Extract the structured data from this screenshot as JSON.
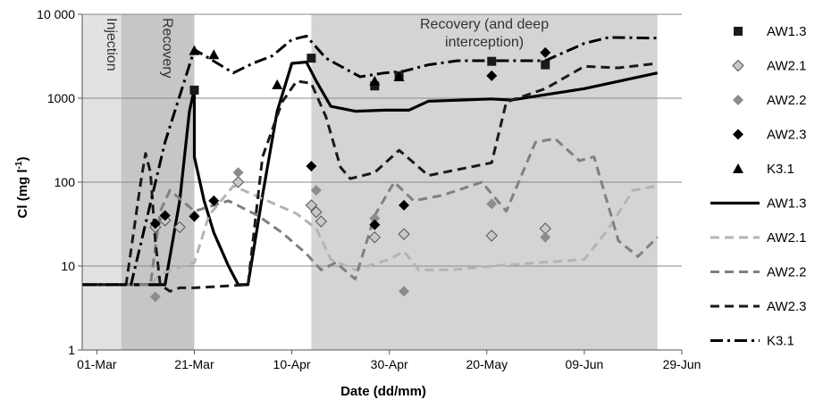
{
  "chart_data": {
    "type": "line",
    "xlabel": "Date (dd/mm)",
    "ylabel": "Cl (mg l",
    "ylabel_sup": "-1",
    "ylabel_close": ")",
    "x_start": "2013-02-26",
    "xlim": [
      "2013-02-26",
      "2013-06-29"
    ],
    "ylim": [
      1,
      10000
    ],
    "yscale": "log",
    "grid": "horizontal",
    "legend_position": "right",
    "x_ticks": [
      {
        "date": "2013-03-01",
        "label": "01-Mar"
      },
      {
        "date": "2013-03-21",
        "label": "21-Mar"
      },
      {
        "date": "2013-04-10",
        "label": "10-Apr"
      },
      {
        "date": "2013-04-30",
        "label": "30-Apr"
      },
      {
        "date": "2013-05-20",
        "label": "20-May"
      },
      {
        "date": "2013-06-09",
        "label": "09-Jun"
      },
      {
        "date": "2013-06-29",
        "label": "29-Jun"
      }
    ],
    "y_ticks": [
      {
        "value": 1,
        "label": "1"
      },
      {
        "value": 10,
        "label": "10"
      },
      {
        "value": 100,
        "label": "100"
      },
      {
        "value": 1000,
        "label": "1000"
      },
      {
        "value": 10000,
        "label": "10 000"
      }
    ],
    "bands": [
      {
        "label": "Injection",
        "start": "2013-02-26",
        "end": "2013-03-06",
        "color": "#e2e2e2",
        "rotated": true
      },
      {
        "label": "Recovery",
        "start": "2013-03-06",
        "end": "2013-03-21",
        "color": "#c6c6c6",
        "rotated": true
      },
      {
        "label_lines": [
          "Recovery (and deep",
          "interception)"
        ],
        "start": "2013-04-14",
        "end": "2013-06-24",
        "color": "#d4d4d4",
        "rotated": false
      }
    ],
    "point_series": [
      {
        "name": "AW1.3",
        "marker": "square",
        "color": "#1a1a1a",
        "points": [
          [
            "2013-03-21",
            1250
          ],
          [
            "2013-04-14",
            3000
          ],
          [
            "2013-04-27",
            1400
          ],
          [
            "2013-05-02",
            1850
          ],
          [
            "2013-05-21",
            2750
          ],
          [
            "2013-06-01",
            2500
          ]
        ]
      },
      {
        "name": "AW2.1",
        "marker": "diamond-outline",
        "color": "#c8c8c8",
        "points": [
          [
            "2013-03-13",
            29
          ],
          [
            "2013-03-15",
            35
          ],
          [
            "2013-03-18",
            29
          ],
          [
            "2013-03-30",
            100
          ],
          [
            "2013-04-14",
            53
          ],
          [
            "2013-04-15",
            44
          ],
          [
            "2013-04-16",
            34
          ],
          [
            "2013-04-27",
            22
          ],
          [
            "2013-05-03",
            24
          ],
          [
            "2013-05-21",
            23
          ],
          [
            "2013-06-01",
            28
          ]
        ]
      },
      {
        "name": "AW2.2",
        "marker": "diamond",
        "color": "#8c8c8c",
        "points": [
          [
            "2013-03-13",
            4.3
          ],
          [
            "2013-03-21",
            40
          ],
          [
            "2013-03-25",
            60
          ],
          [
            "2013-03-30",
            130
          ],
          [
            "2013-04-15",
            80
          ],
          [
            "2013-04-27",
            37
          ],
          [
            "2013-05-03",
            5
          ],
          [
            "2013-05-21",
            55
          ],
          [
            "2013-06-01",
            22
          ]
        ]
      },
      {
        "name": "AW2.3",
        "marker": "diamond",
        "color": "#000000",
        "points": [
          [
            "2013-03-13",
            32
          ],
          [
            "2013-03-15",
            40
          ],
          [
            "2013-03-21",
            39
          ],
          [
            "2013-03-25",
            60
          ],
          [
            "2013-04-14",
            155
          ],
          [
            "2013-04-27",
            31
          ],
          [
            "2013-05-03",
            53
          ],
          [
            "2013-05-21",
            1850
          ],
          [
            "2013-06-01",
            3500
          ]
        ]
      },
      {
        "name": "K3.1",
        "marker": "triangle",
        "color": "#000000",
        "points": [
          [
            "2013-03-21",
            3700
          ],
          [
            "2013-03-25",
            3300
          ],
          [
            "2013-04-07",
            1450
          ],
          [
            "2013-04-27",
            1600
          ],
          [
            "2013-05-02",
            1800
          ]
        ]
      }
    ],
    "line_series": [
      {
        "name": "AW1.3",
        "color": "#000000",
        "width": 3.2,
        "dash": "",
        "points": [
          [
            "2013-02-26",
            6
          ],
          [
            "2013-03-15",
            6
          ],
          [
            "2013-03-18",
            60
          ],
          [
            "2013-03-20",
            700
          ],
          [
            "2013-03-21",
            1300
          ],
          [
            "2013-03-21",
            200
          ],
          [
            "2013-03-23",
            60
          ],
          [
            "2013-03-25",
            25
          ],
          [
            "2013-03-28",
            10
          ],
          [
            "2013-03-30",
            6
          ],
          [
            "2013-04-01",
            6
          ],
          [
            "2013-04-04",
            70
          ],
          [
            "2013-04-07",
            700
          ],
          [
            "2013-04-10",
            2600
          ],
          [
            "2013-04-13",
            2700
          ],
          [
            "2013-04-15",
            1600
          ],
          [
            "2013-04-18",
            800
          ],
          [
            "2013-04-23",
            700
          ],
          [
            "2013-04-29",
            720
          ],
          [
            "2013-05-04",
            720
          ],
          [
            "2013-05-08",
            920
          ],
          [
            "2013-05-21",
            980
          ],
          [
            "2013-05-25",
            950
          ],
          [
            "2013-06-01",
            1100
          ],
          [
            "2013-06-09",
            1300
          ],
          [
            "2013-06-14",
            1500
          ],
          [
            "2013-06-24",
            2000
          ]
        ]
      },
      {
        "name": "AW2.1",
        "color": "#b4b4b4",
        "width": 3,
        "dash": "10 6",
        "points": [
          [
            "2013-02-26",
            6
          ],
          [
            "2013-03-12",
            6
          ],
          [
            "2013-03-14",
            8
          ],
          [
            "2013-03-21",
            11
          ],
          [
            "2013-03-24",
            40
          ],
          [
            "2013-03-29",
            90
          ],
          [
            "2013-04-05",
            60
          ],
          [
            "2013-04-11",
            42
          ],
          [
            "2013-04-15",
            28
          ],
          [
            "2013-04-18",
            12
          ],
          [
            "2013-04-23",
            9
          ],
          [
            "2013-04-30",
            12
          ],
          [
            "2013-05-03",
            15
          ],
          [
            "2013-05-06",
            9
          ],
          [
            "2013-05-13",
            9
          ],
          [
            "2013-05-21",
            10
          ],
          [
            "2013-06-09",
            12
          ],
          [
            "2013-06-14",
            28
          ],
          [
            "2013-06-19",
            80
          ],
          [
            "2013-06-24",
            90
          ]
        ]
      },
      {
        "name": "AW2.2",
        "color": "#808080",
        "width": 3,
        "dash": "10 6",
        "points": [
          [
            "2013-02-26",
            6
          ],
          [
            "2013-03-12",
            6
          ],
          [
            "2013-03-14",
            45
          ],
          [
            "2013-03-16",
            80
          ],
          [
            "2013-03-21",
            45
          ],
          [
            "2013-03-28",
            60
          ],
          [
            "2013-04-03",
            40
          ],
          [
            "2013-04-08",
            25
          ],
          [
            "2013-04-13",
            14
          ],
          [
            "2013-04-16",
            9
          ],
          [
            "2013-04-19",
            11
          ],
          [
            "2013-04-23",
            7
          ],
          [
            "2013-04-27",
            40
          ],
          [
            "2013-05-01",
            100
          ],
          [
            "2013-05-05",
            60
          ],
          [
            "2013-05-11",
            70
          ],
          [
            "2013-05-19",
            100
          ],
          [
            "2013-05-24",
            45
          ],
          [
            "2013-05-30",
            300
          ],
          [
            "2013-06-03",
            330
          ],
          [
            "2013-06-08",
            180
          ],
          [
            "2013-06-11",
            200
          ],
          [
            "2013-06-16",
            20
          ],
          [
            "2013-06-20",
            13
          ],
          [
            "2013-06-24",
            22
          ]
        ]
      },
      {
        "name": "AW2.3",
        "color": "#1a1a1a",
        "width": 3,
        "dash": "10 6",
        "points": [
          [
            "2013-02-26",
            6
          ],
          [
            "2013-03-07",
            6
          ],
          [
            "2013-03-10",
            100
          ],
          [
            "2013-03-11",
            220
          ],
          [
            "2013-03-12",
            130
          ],
          [
            "2013-03-13",
            20
          ],
          [
            "2013-03-14",
            6
          ],
          [
            "2013-03-16",
            5
          ],
          [
            "2013-03-18",
            5.5
          ],
          [
            "2013-03-21",
            5.5
          ],
          [
            "2013-04-01",
            6
          ],
          [
            "2013-04-04",
            200
          ],
          [
            "2013-04-08",
            900
          ],
          [
            "2013-04-11",
            1600
          ],
          [
            "2013-04-14",
            1500
          ],
          [
            "2013-04-17",
            600
          ],
          [
            "2013-04-20",
            150
          ],
          [
            "2013-04-22",
            110
          ],
          [
            "2013-04-27",
            130
          ],
          [
            "2013-05-02",
            240
          ],
          [
            "2013-05-05",
            170
          ],
          [
            "2013-05-08",
            120
          ],
          [
            "2013-05-21",
            170
          ],
          [
            "2013-05-24",
            900
          ],
          [
            "2013-06-01",
            1300
          ],
          [
            "2013-06-09",
            2400
          ],
          [
            "2013-06-16",
            2300
          ],
          [
            "2013-06-24",
            2600
          ]
        ]
      },
      {
        "name": "K3.1",
        "color": "#000000",
        "width": 3,
        "dash": "14 5 3 5",
        "points": [
          [
            "2013-02-26",
            6
          ],
          [
            "2013-03-06",
            6
          ],
          [
            "2013-03-08",
            6
          ],
          [
            "2013-03-15",
            300
          ],
          [
            "2013-03-21",
            3800
          ],
          [
            "2013-03-24",
            3000
          ],
          [
            "2013-03-29",
            2000
          ],
          [
            "2013-04-02",
            2600
          ],
          [
            "2013-04-06",
            3200
          ],
          [
            "2013-04-10",
            5000
          ],
          [
            "2013-04-13",
            5500
          ],
          [
            "2013-04-17",
            3000
          ],
          [
            "2013-04-24",
            1800
          ],
          [
            "2013-04-29",
            2000
          ],
          [
            "2013-05-03",
            2100
          ],
          [
            "2013-05-08",
            2500
          ],
          [
            "2013-05-14",
            2800
          ],
          [
            "2013-05-21",
            2800
          ],
          [
            "2013-06-01",
            2800
          ],
          [
            "2013-06-09",
            4500
          ],
          [
            "2013-06-14",
            5300
          ],
          [
            "2013-06-24",
            5200
          ]
        ]
      }
    ]
  }
}
